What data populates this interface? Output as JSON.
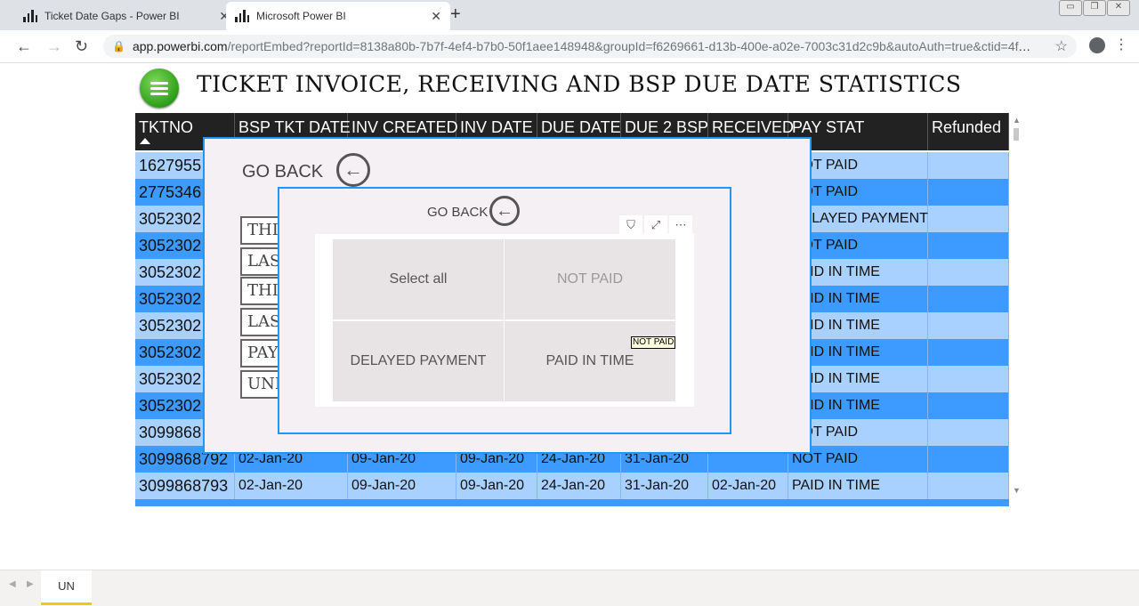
{
  "browser": {
    "tabs": [
      {
        "title": "Ticket Date Gaps - Power BI"
      },
      {
        "title": "Microsoft Power BI"
      }
    ],
    "url_domain": "app.powerbi.com",
    "url_rest": "/reportEmbed?reportId=8138a80b-7b7f-4ef4-b7b0-50f1aee148948&groupId=f6269661-d13b-400e-a02e-7003c31d2c9b&autoAuth=true&ctid=4ff..."
  },
  "report": {
    "title": "TICKET INVOICE, RECEIVING AND BSP DUE DATE STATISTICS"
  },
  "table": {
    "headers": [
      "TKTNO",
      "BSP TKT DATE",
      "INV CREATED",
      "INV DATE",
      "DUE DATE",
      "DUE 2 BSP",
      "RECEIVED",
      "PAY STAT",
      "Refunded"
    ],
    "rows": [
      [
        "1627955",
        "",
        "",
        "",
        "",
        "",
        "",
        "NOT PAID",
        ""
      ],
      [
        "2775346",
        "",
        "",
        "",
        "",
        "",
        "",
        "NOT PAID",
        ""
      ],
      [
        "3052302",
        "",
        "",
        "",
        "",
        "",
        "",
        "DELAYED PAYMENT",
        ""
      ],
      [
        "3052302",
        "",
        "",
        "",
        "",
        "",
        "",
        "NOT PAID",
        ""
      ],
      [
        "3052302",
        "",
        "",
        "",
        "",
        "",
        "",
        "PAID IN TIME",
        ""
      ],
      [
        "3052302",
        "",
        "",
        "",
        "",
        "",
        "",
        "PAID IN TIME",
        ""
      ],
      [
        "3052302",
        "",
        "",
        "",
        "",
        "",
        "",
        "PAID IN TIME",
        ""
      ],
      [
        "3052302",
        "",
        "",
        "",
        "",
        "",
        "",
        "PAID IN TIME",
        ""
      ],
      [
        "3052302",
        "",
        "",
        "",
        "",
        "",
        "",
        "PAID IN TIME",
        ""
      ],
      [
        "3052302",
        "",
        "",
        "",
        "",
        "",
        "",
        "PAID IN TIME",
        ""
      ],
      [
        "3099868",
        "",
        "",
        "",
        "",
        "",
        "",
        "NOT PAID",
        ""
      ],
      [
        "3099868792",
        "02-Jan-20",
        "09-Jan-20",
        "09-Jan-20",
        "24-Jan-20",
        "31-Jan-20",
        "",
        "NOT PAID",
        ""
      ],
      [
        "3099868793",
        "02-Jan-20",
        "09-Jan-20",
        "09-Jan-20",
        "24-Jan-20",
        "31-Jan-20",
        "02-Jan-20",
        "PAID IN TIME",
        ""
      ]
    ]
  },
  "modal_outer": {
    "go_back": "GO BACK",
    "buttons": [
      "THI",
      "LAS",
      "THI",
      "LAS",
      "PAY",
      "UNF"
    ]
  },
  "modal_inner": {
    "go_back": "GO BACK",
    "slicer": {
      "options": [
        "Select all",
        "NOT PAID",
        "DELAYED PAYMENT",
        "PAID IN TIME"
      ]
    },
    "tooltip": "NOT PAID"
  },
  "sheets": {
    "active": "UN"
  },
  "colors": {
    "row_light": "#a8d1ff",
    "row_dark": "#3d9bff",
    "header_bg": "#222222",
    "modal_border": "#2196f3",
    "sheet_accent": "#f2c811"
  }
}
